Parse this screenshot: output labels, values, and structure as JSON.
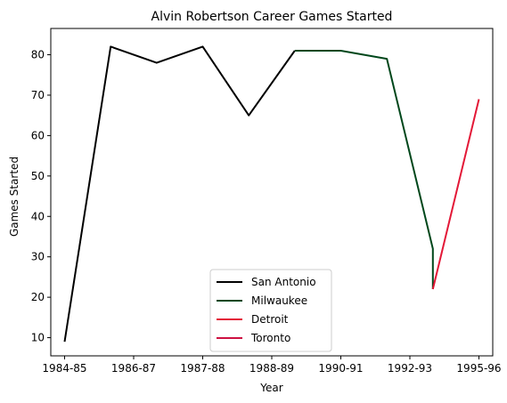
{
  "chart_data": {
    "type": "line",
    "title": "Alvin Robertson Career Games Started",
    "xlabel": "Year",
    "ylabel": "Games Started",
    "x_ticks": [
      "1984-85",
      "1986-87",
      "1987-88",
      "1988-89",
      "1990-91",
      "1992-93",
      "1995-96"
    ],
    "xlim": [
      -0.3,
      9.3
    ],
    "ylim": [
      5.5,
      86.5
    ],
    "y_ticks": [
      10,
      20,
      30,
      40,
      50,
      60,
      70,
      80
    ],
    "grid": false,
    "legend_position": "bottom-center",
    "series": [
      {
        "name": "San Antonio",
        "color": "#000000",
        "x": [
          0,
          1,
          2,
          3,
          4,
          5
        ],
        "y": [
          9,
          82,
          78,
          82,
          65,
          81
        ]
      },
      {
        "name": "Milwaukee",
        "color": "#00471b",
        "x": [
          5,
          6,
          7,
          8,
          8
        ],
        "y": [
          81,
          81,
          79,
          32,
          22
        ]
      },
      {
        "name": "Detroit",
        "color": "#e31837",
        "x": [
          8,
          9
        ],
        "y": [
          22,
          69
        ]
      },
      {
        "name": "Toronto",
        "color": "#ce1141",
        "x": [],
        "y": []
      }
    ]
  }
}
